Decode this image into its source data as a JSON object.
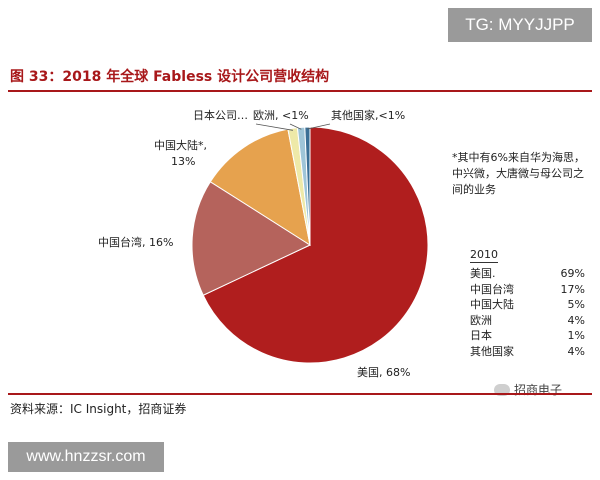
{
  "watermark_top": "TG: MYYJJPP",
  "title": "图 33：2018 年全球 Fabless 设计公司营收结构",
  "note": "*其中有6%来自华为海思，中兴微，大唐微与母公司之间的业务",
  "legend_2010": {
    "title": "2010",
    "rows": [
      {
        "label": "美国.",
        "value": "69%"
      },
      {
        "label": "中国台湾",
        "value": "17%"
      },
      {
        "label": "中国大陆",
        "value": "5%"
      },
      {
        "label": "欧洲",
        "value": "4%"
      },
      {
        "label": "日本",
        "value": "1%"
      },
      {
        "label": "其他国家",
        "value": "4%"
      }
    ]
  },
  "source": "资料来源：IC Insight，招商证券",
  "watermark_logo": "招商电子",
  "watermark_bottom": "www.hnzzsr.com",
  "chart_data": {
    "type": "pie",
    "title": "图 33：2018 年全球 Fabless 设计公司营收结构",
    "slices": [
      {
        "name": "美国",
        "label": "美国, 68%",
        "value": 68,
        "color": "#b01e1e"
      },
      {
        "name": "中国台湾",
        "label": "中国台湾, 16%",
        "value": 16,
        "color": "#b5635c"
      },
      {
        "name": "中国大陆*",
        "label_line1": "中国大陆*,",
        "label_line2": "13%",
        "value": 13,
        "color": "#e6a24e"
      },
      {
        "name": "日本",
        "label": "日本公司…",
        "value": 1.3,
        "color": "#eee9a8"
      },
      {
        "name": "欧洲",
        "label": "欧洲, <1%",
        "value": 1,
        "color": "#9fc5d8"
      },
      {
        "name": "其他国家",
        "label": "其他国家,<1%",
        "value": 0.7,
        "color": "#3a6f96"
      }
    ]
  }
}
